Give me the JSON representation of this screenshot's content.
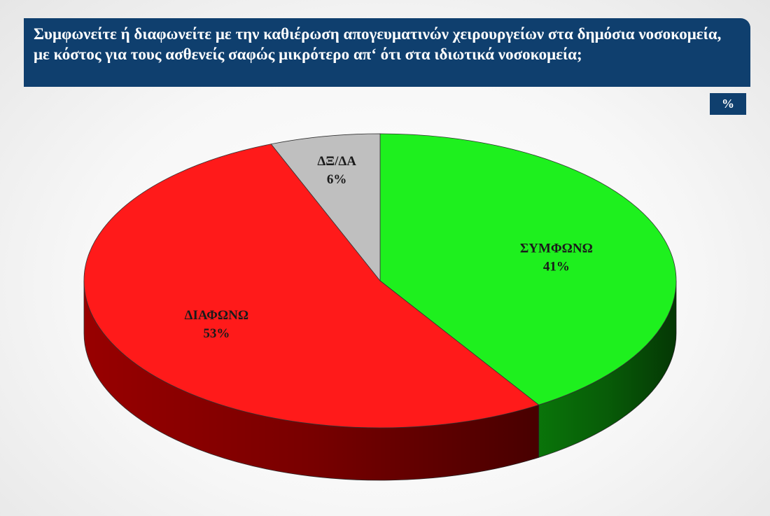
{
  "header": {
    "title": "Συμφωνείτε ή διαφωνείτε με την καθιέρωση απογευματινών χειρουργείων στα δημόσια νοσοκομεία,  με κόστος για τους ασθενείς σαφώς μικρότερο απ‘ ότι στα ιδιωτικά νοσοκομεία;",
    "unit_badge": "%"
  },
  "colors": {
    "header_bg": "#0f3f6e",
    "badge_bg": "#0f3f6e"
  },
  "chart_data": {
    "type": "pie",
    "title": "Συμφωνείτε ή διαφωνείτε με την καθιέρωση απογευματινών χειρουργείων στα δημόσια νοσοκομεία,  με κόστος για τους ασθενείς σαφώς μικρότερο απ‘ ότι στα ιδιωτικά νοσοκομεία;",
    "unit": "%",
    "slices": [
      {
        "label": "ΣΥΜΦΩΝΩ",
        "value": 41,
        "display": "41%",
        "color": "#1ef01e",
        "side_color": "#0a7a0a"
      },
      {
        "label": "ΔΙΑΦΩΝΩ",
        "value": 53,
        "display": "53%",
        "color": "#ff1a1a",
        "side_color": "#a00000"
      },
      {
        "label": "ΔΞ/ΔΑ",
        "value": 6,
        "display": "6%",
        "color": "#bfbfbf",
        "side_color": "#7f7f7f"
      }
    ]
  }
}
